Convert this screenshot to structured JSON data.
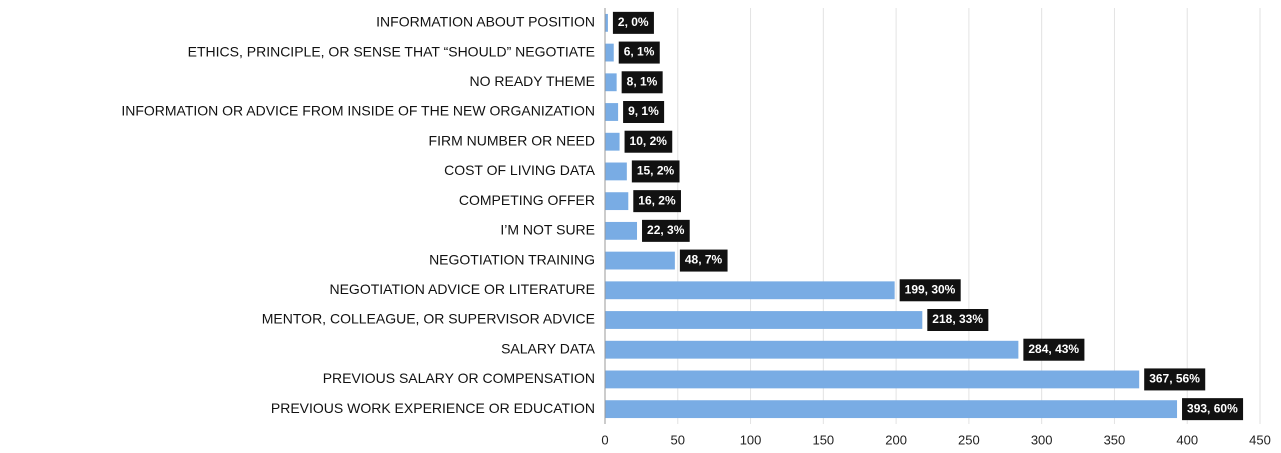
{
  "chart_data": {
    "type": "bar",
    "categories": [
      "INFORMATION ABOUT POSITION",
      "ETHICS, PRINCIPLE, OR SENSE THAT “SHOULD” NEGOTIATE",
      "NO READY THEME",
      "INFORMATION OR ADVICE FROM INSIDE OF THE NEW ORGANIZATION",
      "FIRM NUMBER OR NEED",
      "COST OF LIVING DATA",
      "COMPETING OFFER",
      "I’M NOT SURE",
      "NEGOTIATION TRAINING",
      "NEGOTIATION ADVICE OR LITERATURE",
      "MENTOR, COLLEAGUE, OR SUPERVISOR ADVICE",
      "SALARY DATA",
      "PREVIOUS SALARY OR COMPENSATION",
      "PREVIOUS WORK EXPERIENCE OR EDUCATION"
    ],
    "values": [
      2,
      6,
      8,
      9,
      10,
      15,
      16,
      22,
      48,
      199,
      218,
      284,
      367,
      393
    ],
    "value_labels": [
      "2, 0%",
      "6, 1%",
      "8, 1%",
      "9, 1%",
      "10, 2%",
      "15, 2%",
      "16, 2%",
      "22, 3%",
      "48, 7%",
      "199, 30%",
      "218, 33%",
      "284, 43%",
      "367, 56%",
      "393, 60%"
    ],
    "color": "#79ace4",
    "xlim": [
      0,
      450
    ],
    "xticks": [
      0,
      50,
      100,
      150,
      200,
      250,
      300,
      350,
      400,
      450
    ],
    "grid": true
  }
}
